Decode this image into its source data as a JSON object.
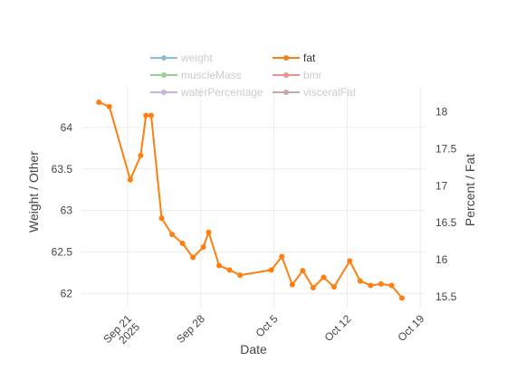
{
  "chart_data": {
    "type": "line",
    "xlabel": "Date",
    "ylabel_left": "Weight / Other",
    "ylabel_right": "Percent / Fat",
    "x_ticks": [
      {
        "date": "2025-09-21",
        "label": "Sep 21",
        "label2": "2025"
      },
      {
        "date": "2025-09-28",
        "label": "Sep 28",
        "label2": ""
      },
      {
        "date": "2025-10-05",
        "label": "Oct 5",
        "label2": ""
      },
      {
        "date": "2025-10-12",
        "label": "Oct 12",
        "label2": ""
      },
      {
        "date": "2025-10-19",
        "label": "Oct 19",
        "label2": ""
      }
    ],
    "xlim": [
      "2025-09-16T14:00",
      "2025-10-19T12:00"
    ],
    "y_left": {
      "range": [
        61.83,
        64.5
      ],
      "ticks": [
        "62",
        "62.5",
        "63",
        "63.5",
        "64"
      ]
    },
    "y_right": {
      "range": [
        15.35,
        18.35
      ],
      "ticks": [
        "15.5",
        "16",
        "16.5",
        "17",
        "17.5",
        "18"
      ]
    },
    "grid": true,
    "legend_position": "top",
    "legend": [
      {
        "name": "weight",
        "color": "#1f77b4",
        "active": false
      },
      {
        "name": "fat",
        "color": "#ff7f0e",
        "active": true
      },
      {
        "name": "muscleMass",
        "color": "#2ca02c",
        "active": false
      },
      {
        "name": "bmr",
        "color": "#d62728",
        "active": false
      },
      {
        "name": "waterPercentage",
        "color": "#9467bd",
        "active": false
      },
      {
        "name": "visceralFat",
        "color": "#8c564b",
        "active": false
      }
    ],
    "series": [
      {
        "name": "fat",
        "color": "#ff7f0e",
        "axis": "right",
        "points": [
          {
            "x": "2025-09-18T06:00",
            "y": 18.13
          },
          {
            "x": "2025-09-19T06:00",
            "y": 18.07
          },
          {
            "x": "2025-09-21T06:00",
            "y": 17.08
          },
          {
            "x": "2025-09-22T06:00",
            "y": 17.41
          },
          {
            "x": "2025-09-22T18:00",
            "y": 17.95
          },
          {
            "x": "2025-09-23T06:00",
            "y": 17.95
          },
          {
            "x": "2025-09-24T06:00",
            "y": 16.56
          },
          {
            "x": "2025-09-25T06:00",
            "y": 16.34
          },
          {
            "x": "2025-09-26T06:00",
            "y": 16.22
          },
          {
            "x": "2025-09-27T06:00",
            "y": 16.03
          },
          {
            "x": "2025-09-28T06:00",
            "y": 16.17
          },
          {
            "x": "2025-09-28T18:00",
            "y": 16.37
          },
          {
            "x": "2025-09-29T18:00",
            "y": 15.92
          },
          {
            "x": "2025-09-30T18:00",
            "y": 15.86
          },
          {
            "x": "2025-10-01T18:00",
            "y": 15.79
          },
          {
            "x": "2025-10-04T18:00",
            "y": 15.86
          },
          {
            "x": "2025-10-05T18:00",
            "y": 16.04
          },
          {
            "x": "2025-10-06T18:00",
            "y": 15.66
          },
          {
            "x": "2025-10-07T18:00",
            "y": 15.85
          },
          {
            "x": "2025-10-08T18:00",
            "y": 15.62
          },
          {
            "x": "2025-10-09T18:00",
            "y": 15.76
          },
          {
            "x": "2025-10-10T18:00",
            "y": 15.63
          },
          {
            "x": "2025-10-12T06:00",
            "y": 15.98
          },
          {
            "x": "2025-10-13T06:00",
            "y": 15.71
          },
          {
            "x": "2025-10-14T06:00",
            "y": 15.65
          },
          {
            "x": "2025-10-15T06:00",
            "y": 15.67
          },
          {
            "x": "2025-10-16T06:00",
            "y": 15.65
          },
          {
            "x": "2025-10-17T06:00",
            "y": 15.48
          }
        ]
      }
    ]
  }
}
